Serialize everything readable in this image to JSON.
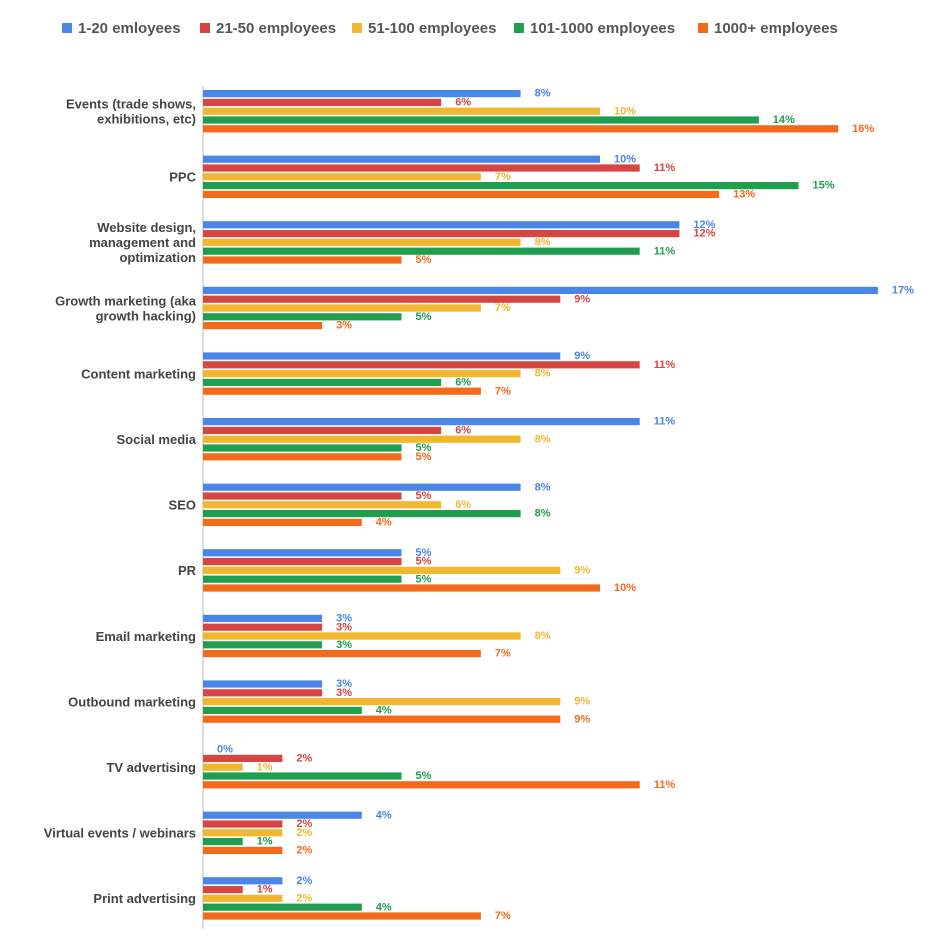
{
  "colors": {
    "series": [
      "#4a86e8",
      "#d64541",
      "#f1b72f",
      "#1e9e4e",
      "#f46a1b"
    ],
    "axis": "#bbbbbb",
    "label": "#444444",
    "background": "#ffffff"
  },
  "chart_data": {
    "type": "bar",
    "orientation": "horizontal",
    "legend_position": "top",
    "grid": false,
    "xlim": [
      0,
      17
    ],
    "series_names": [
      "1-20 emloyees",
      "21-50 employees",
      "51-100 employees",
      "101-1000 employees",
      "1000+ employees"
    ],
    "categories": [
      {
        "lines": [
          "Events (trade shows,",
          "exhibitions, etc)"
        ]
      },
      {
        "lines": [
          "PPC"
        ]
      },
      {
        "lines": [
          "Website design,",
          "management and",
          "optimization"
        ]
      },
      {
        "lines": [
          "Growth marketing (aka",
          "growth hacking)"
        ]
      },
      {
        "lines": [
          "Content marketing"
        ]
      },
      {
        "lines": [
          "Social media"
        ]
      },
      {
        "lines": [
          "SEO"
        ]
      },
      {
        "lines": [
          "PR"
        ]
      },
      {
        "lines": [
          "Email marketing"
        ]
      },
      {
        "lines": [
          "Outbound marketing"
        ]
      },
      {
        "lines": [
          "TV advertising"
        ]
      },
      {
        "lines": [
          "Virtual events / webinars"
        ]
      },
      {
        "lines": [
          "Print advertising"
        ]
      }
    ],
    "values": [
      [
        8,
        6,
        10,
        14,
        16
      ],
      [
        10,
        11,
        7,
        15,
        13
      ],
      [
        12,
        12,
        8,
        11,
        5
      ],
      [
        17,
        9,
        7,
        5,
        3
      ],
      [
        9,
        11,
        8,
        6,
        7
      ],
      [
        11,
        6,
        8,
        5,
        5
      ],
      [
        8,
        5,
        6,
        8,
        4
      ],
      [
        5,
        5,
        9,
        5,
        10
      ],
      [
        3,
        3,
        8,
        3,
        7
      ],
      [
        3,
        3,
        9,
        4,
        9
      ],
      [
        0,
        2,
        1,
        5,
        11
      ],
      [
        4,
        2,
        2,
        1,
        2
      ],
      [
        2,
        1,
        2,
        4,
        7
      ]
    ],
    "value_suffix": "%"
  }
}
